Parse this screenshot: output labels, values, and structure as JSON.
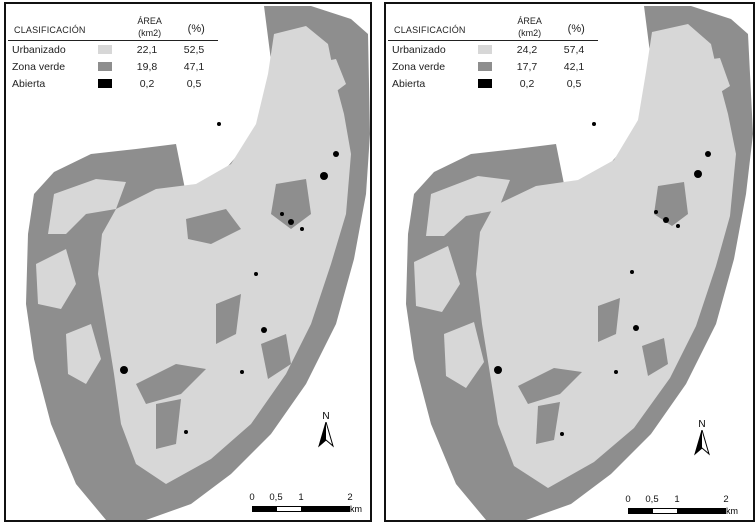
{
  "legend_header": {
    "classification": "CLASIFICACIÓN",
    "area_line1": "ÁREA",
    "area_line2": "(km2)",
    "percent": "(%)"
  },
  "classes": [
    {
      "name": "Urbanizado",
      "color": "#d7d7d7"
    },
    {
      "name": "Zona verde",
      "color": "#8e8e8e"
    },
    {
      "name": "Abierta",
      "color": "#000000"
    }
  ],
  "maps": [
    {
      "rows": [
        {
          "area": "22,1",
          "percent": "52,5"
        },
        {
          "area": "19,8",
          "percent": "47,1"
        },
        {
          "area": "0,2",
          "percent": "0,5"
        }
      ]
    },
    {
      "rows": [
        {
          "area": "24,2",
          "percent": "57,4"
        },
        {
          "area": "17,7",
          "percent": "42,1"
        },
        {
          "area": "0,2",
          "percent": "0,5"
        }
      ]
    }
  ],
  "north_label": "N",
  "scale": {
    "ticks": [
      "0",
      "0,5",
      "1",
      "2"
    ],
    "unit": "km"
  }
}
